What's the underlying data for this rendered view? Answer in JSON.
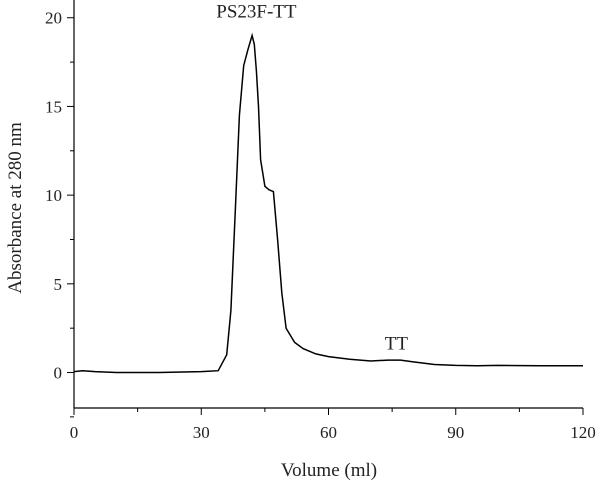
{
  "chart_data": {
    "type": "line",
    "title": "",
    "xlabel": "Volume (ml)",
    "ylabel": "Absorbance at 280 nm",
    "xlim": [
      0,
      120
    ],
    "ylim": [
      -2,
      21
    ],
    "xticks": [
      0,
      30,
      60,
      90,
      120
    ],
    "yticks": [
      0,
      5,
      10,
      15,
      20
    ],
    "grid": false,
    "legend": "none",
    "line_color": "#000000",
    "series": [
      {
        "x": [
          0,
          2,
          5,
          10,
          20,
          30,
          34,
          36,
          37,
          38,
          39,
          40,
          41,
          42,
          42.5,
          43,
          43.5,
          44,
          45,
          46,
          47,
          48,
          49,
          50,
          52,
          54,
          57,
          60,
          65,
          70,
          74,
          77,
          80,
          85,
          90,
          95,
          100,
          110,
          120
        ],
        "y": [
          0.05,
          0.1,
          0.05,
          0.0,
          0.0,
          0.05,
          0.1,
          1.0,
          3.5,
          9.0,
          14.5,
          17.3,
          18.2,
          19.0,
          18.5,
          17.0,
          15.0,
          12.0,
          10.5,
          10.3,
          10.2,
          7.5,
          4.5,
          2.5,
          1.7,
          1.35,
          1.05,
          0.9,
          0.75,
          0.65,
          0.7,
          0.7,
          0.6,
          0.45,
          0.4,
          0.38,
          0.4,
          0.38,
          0.38
        ]
      }
    ],
    "annotations": [
      {
        "text": "PS23F-TT",
        "x": 43,
        "y": 20
      },
      {
        "text": "TT",
        "x": 76,
        "y": 1.3
      }
    ]
  }
}
